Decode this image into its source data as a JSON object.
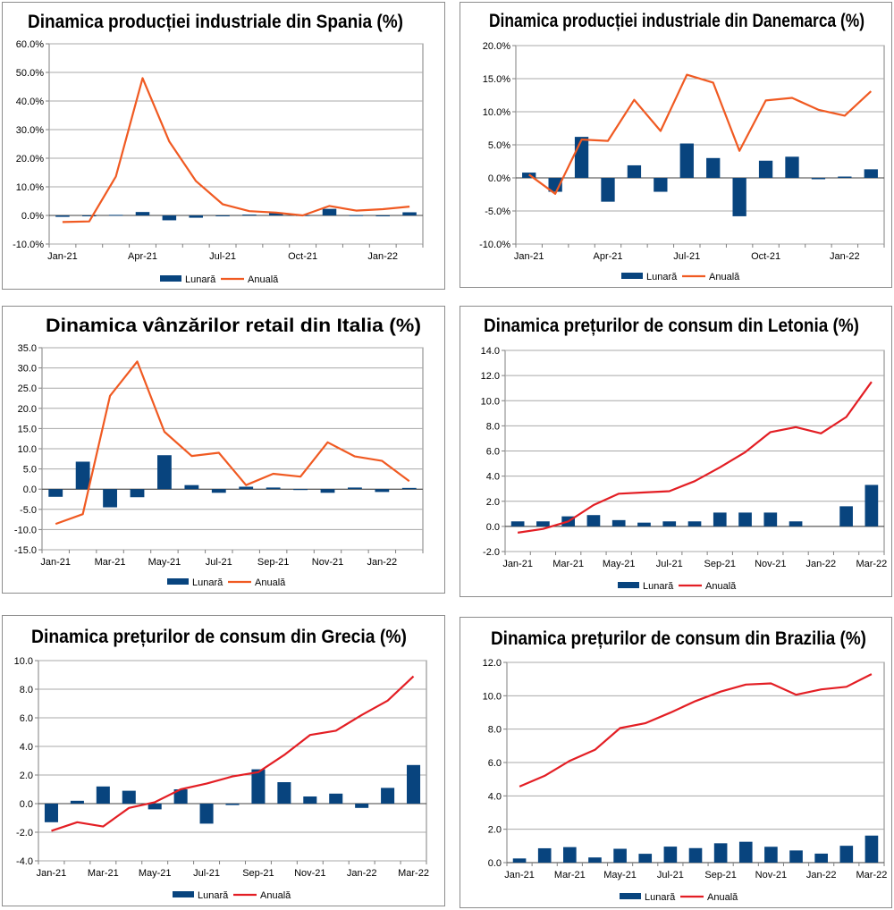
{
  "colors": {
    "bar": "#08447e",
    "line_orange": "#f05a22",
    "line_red": "#e31e24",
    "grid": "#a8a8a8",
    "axis": "#7f7f7f"
  },
  "chart_data": [
    {
      "type": "bar+line",
      "title": "Dinamica producției industriale din Spania (%)",
      "categories": [
        "Jan-21",
        "Feb-21",
        "Mar-21",
        "Apr-21",
        "May-21",
        "Jun-21",
        "Jul-21",
        "Aug-21",
        "Sep-21",
        "Oct-21",
        "Nov-21",
        "Dec-21",
        "Jan-22",
        "Feb-22"
      ],
      "x_tick_labels": [
        "Jan-21",
        "",
        "",
        "Apr-21",
        "",
        "",
        "Jul-21",
        "",
        "",
        "Oct-21",
        "",
        "",
        "Jan-22",
        ""
      ],
      "y_ticks": [
        "-10.0%",
        "0.0%",
        "10.0%",
        "20.0%",
        "30.0%",
        "40.0%",
        "50.0%",
        "60.0%"
      ],
      "ylim": [
        -10,
        60
      ],
      "ystep": 10,
      "series": [
        {
          "name": "Lunară",
          "kind": "bar",
          "values": [
            -0.5,
            -0.2,
            0.2,
            1.2,
            -1.7,
            -0.8,
            -0.3,
            0.3,
            0.9,
            0.1,
            2.3,
            0.1,
            -0.2,
            1.1
          ]
        },
        {
          "name": "Anuală",
          "kind": "line",
          "values": [
            -2.3,
            -2.1,
            13.6,
            48.0,
            25.8,
            12.0,
            3.9,
            1.5,
            1.0,
            0.0,
            3.3,
            1.7,
            2.2,
            3.1
          ]
        }
      ],
      "legend": [
        "Lunară",
        "Anuală"
      ]
    },
    {
      "type": "bar+line",
      "title": "Dinamica producției industriale din Danemarca (%)",
      "categories": [
        "Jan-21",
        "Feb-21",
        "Mar-21",
        "Apr-21",
        "May-21",
        "Jun-21",
        "Jul-21",
        "Aug-21",
        "Sep-21",
        "Oct-21",
        "Nov-21",
        "Dec-21",
        "Jan-22",
        "Feb-22"
      ],
      "x_tick_labels": [
        "Jan-21",
        "",
        "",
        "Apr-21",
        "",
        "",
        "Jul-21",
        "",
        "",
        "Oct-21",
        "",
        "",
        "Jan-22",
        ""
      ],
      "y_ticks": [
        "-10.0%",
        "-5.0%",
        "0.0%",
        "5.0%",
        "10.0%",
        "15.0%",
        "20.0%"
      ],
      "ylim": [
        -10,
        20
      ],
      "ystep": 5,
      "series": [
        {
          "name": "Lunară",
          "kind": "bar",
          "values": [
            0.8,
            -2.1,
            6.2,
            -3.6,
            1.9,
            -2.1,
            5.2,
            3.0,
            -5.8,
            2.6,
            3.2,
            -0.2,
            0.2,
            1.3
          ]
        },
        {
          "name": "Anuală",
          "kind": "line",
          "values": [
            0.5,
            -2.4,
            5.8,
            5.6,
            11.8,
            7.1,
            15.6,
            14.4,
            4.1,
            11.7,
            12.1,
            10.3,
            9.4,
            13.1
          ]
        }
      ],
      "legend": [
        "Lunară",
        "Anuală"
      ]
    },
    {
      "type": "bar+line",
      "title": "Dinamica vânzărilor retail din Italia (%)",
      "categories": [
        "Jan-21",
        "Feb-21",
        "Mar-21",
        "Apr-21",
        "May-21",
        "Jun-21",
        "Jul-21",
        "Aug-21",
        "Sep-21",
        "Oct-21",
        "Nov-21",
        "Dec-21",
        "Jan-22",
        "Feb-22"
      ],
      "x_tick_labels": [
        "Jan-21",
        "",
        "Mar-21",
        "",
        "May-21",
        "",
        "Jul-21",
        "",
        "Sep-21",
        "",
        "Nov-21",
        "",
        "Jan-22",
        ""
      ],
      "y_ticks": [
        "-15.0",
        "-10.0",
        "-5.0",
        "0.0",
        "5.0",
        "10.0",
        "15.0",
        "20.0",
        "25.0",
        "30.0",
        "35.0"
      ],
      "ylim": [
        -15,
        35
      ],
      "ystep": 5,
      "series": [
        {
          "name": "Lunară",
          "kind": "bar",
          "values": [
            -1.9,
            6.8,
            -4.5,
            -2.0,
            8.4,
            1.0,
            -0.9,
            0.6,
            0.4,
            -0.2,
            -0.9,
            0.4,
            -0.7,
            0.3
          ]
        },
        {
          "name": "Anuală",
          "kind": "line",
          "values": [
            -8.6,
            -6.2,
            23.1,
            31.6,
            14.2,
            8.2,
            9.0,
            1.0,
            3.8,
            3.1,
            11.6,
            8.1,
            7.0,
            2.0
          ]
        }
      ],
      "legend": [
        "Lunară",
        "Anuală"
      ]
    },
    {
      "type": "bar+line",
      "title": "Dinamica prețurilor de consum din Letonia (%)",
      "categories": [
        "Jan-21",
        "Feb-21",
        "Mar-21",
        "Apr-21",
        "May-21",
        "Jun-21",
        "Jul-21",
        "Aug-21",
        "Sep-21",
        "Oct-21",
        "Nov-21",
        "Dec-21",
        "Jan-22",
        "Feb-22",
        "Mar-22"
      ],
      "x_tick_labels": [
        "Jan-21",
        "",
        "Mar-21",
        "",
        "May-21",
        "",
        "Jul-21",
        "",
        "Sep-21",
        "",
        "Nov-21",
        "",
        "Jan-22",
        "",
        "Mar-22"
      ],
      "y_ticks": [
        "-2.0",
        "0.0",
        "2.0",
        "4.0",
        "6.0",
        "8.0",
        "10.0",
        "12.0",
        "14.0"
      ],
      "ylim": [
        -2,
        14
      ],
      "ystep": 2,
      "series": [
        {
          "name": "Lunară",
          "kind": "bar",
          "values": [
            0.4,
            0.4,
            0.8,
            0.9,
            0.5,
            0.3,
            0.4,
            0.4,
            1.1,
            1.1,
            1.1,
            0.4,
            0.0,
            1.6,
            3.3
          ]
        },
        {
          "name": "Anuală",
          "kind": "line",
          "values": [
            -0.5,
            -0.2,
            0.4,
            1.7,
            2.6,
            2.7,
            2.8,
            3.6,
            4.7,
            5.9,
            7.5,
            7.9,
            7.4,
            8.7,
            11.5
          ]
        }
      ],
      "legend": [
        "Lunară",
        "Anuală"
      ]
    },
    {
      "type": "bar+line",
      "title": "Dinamica prețurilor de consum din Grecia (%)",
      "categories": [
        "Jan-21",
        "Feb-21",
        "Mar-21",
        "Apr-21",
        "May-21",
        "Jun-21",
        "Jul-21",
        "Aug-21",
        "Sep-21",
        "Oct-21",
        "Nov-21",
        "Dec-21",
        "Jan-22",
        "Feb-22",
        "Mar-22"
      ],
      "x_tick_labels": [
        "Jan-21",
        "",
        "Mar-21",
        "",
        "May-21",
        "",
        "Jul-21",
        "",
        "Sep-21",
        "",
        "Nov-21",
        "",
        "Jan-22",
        "",
        "Mar-22"
      ],
      "y_ticks": [
        "-4.0",
        "-2.0",
        "0.0",
        "2.0",
        "4.0",
        "6.0",
        "8.0",
        "10.0"
      ],
      "ylim": [
        -4,
        10
      ],
      "ystep": 2,
      "series": [
        {
          "name": "Lunară",
          "kind": "bar",
          "values": [
            -1.3,
            0.2,
            1.2,
            0.9,
            -0.4,
            1.0,
            -1.4,
            -0.1,
            2.4,
            1.5,
            0.5,
            0.7,
            -0.3,
            1.1,
            2.7
          ]
        },
        {
          "name": "Anuală",
          "kind": "line",
          "values": [
            -1.9,
            -1.3,
            -1.6,
            -0.3,
            0.1,
            1.0,
            1.4,
            1.9,
            2.2,
            3.4,
            4.8,
            5.1,
            6.2,
            7.2,
            8.9
          ]
        }
      ],
      "legend": [
        "Lunară",
        "Anuală"
      ]
    },
    {
      "type": "bar+line",
      "title": "Dinamica prețurilor de consum din Brazilia (%)",
      "categories": [
        "Jan-21",
        "Feb-21",
        "Mar-21",
        "Apr-21",
        "May-21",
        "Jun-21",
        "Jul-21",
        "Aug-21",
        "Sep-21",
        "Oct-21",
        "Nov-21",
        "Dec-21",
        "Jan-22",
        "Feb-22",
        "Mar-22"
      ],
      "x_tick_labels": [
        "Jan-21",
        "",
        "Mar-21",
        "",
        "May-21",
        "",
        "Jul-21",
        "",
        "Sep-21",
        "",
        "Nov-21",
        "",
        "Jan-22",
        "",
        "Mar-22"
      ],
      "y_ticks": [
        "0.0",
        "2.0",
        "4.0",
        "6.0",
        "8.0",
        "10.0",
        "12.0"
      ],
      "ylim": [
        0,
        12
      ],
      "ystep": 2,
      "series": [
        {
          "name": "Lunară",
          "kind": "bar",
          "values": [
            0.25,
            0.86,
            0.93,
            0.31,
            0.83,
            0.53,
            0.96,
            0.87,
            1.16,
            1.25,
            0.95,
            0.73,
            0.54,
            1.01,
            1.62
          ]
        },
        {
          "name": "Anuală",
          "kind": "line",
          "values": [
            4.56,
            5.2,
            6.1,
            6.76,
            8.06,
            8.35,
            8.99,
            9.68,
            10.25,
            10.67,
            10.74,
            10.06,
            10.38,
            10.54,
            11.3
          ]
        }
      ],
      "legend": [
        "Lunară",
        "Anuală"
      ]
    }
  ]
}
